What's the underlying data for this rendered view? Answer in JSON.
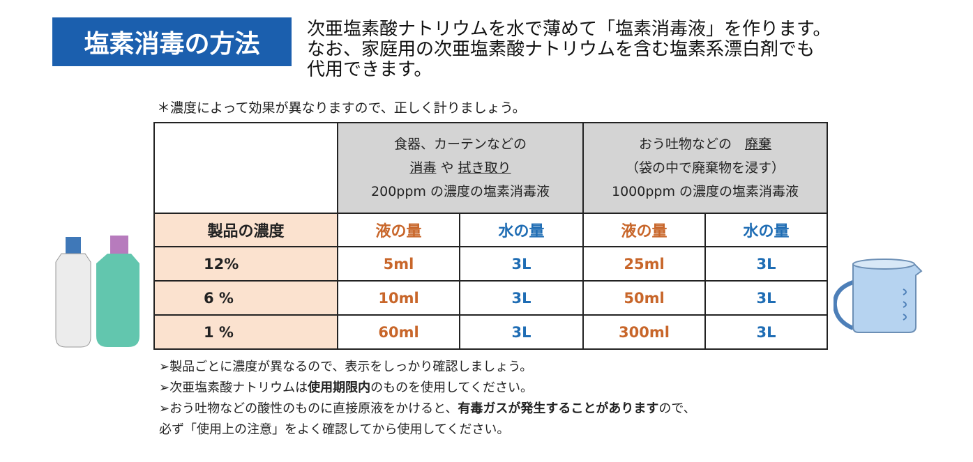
{
  "header": {
    "title": "塩素消毒の方法",
    "description": [
      "次亜塩素酸ナトリウムを水で薄めて「塩素消毒液」を作ります。",
      "なお、家庭用の次亜塩素酸ナトリウムを含む塩素系漂白剤でも",
      "代用できます。"
    ]
  },
  "note": "＊濃度によって効果が異なりますので、正しく計りましょう。",
  "table": {
    "groups": [
      {
        "lines": [
          [
            {
              "text": "食器、カーテンなどの",
              "underline": false
            }
          ],
          [
            {
              "text": "消毒",
              "underline": true
            },
            {
              "text": " や ",
              "underline": false
            },
            {
              "text": "拭き取り",
              "underline": true
            }
          ],
          [
            {
              "text": "200ppm の濃度の塩素消毒液",
              "underline": false
            }
          ]
        ]
      },
      {
        "lines": [
          [
            {
              "text": "おう吐物などの　",
              "underline": false
            },
            {
              "text": "廃棄",
              "underline": true
            }
          ],
          [
            {
              "text": "（袋の中で廃棄物を浸す）",
              "underline": false
            }
          ],
          [
            {
              "text": "1000ppm の濃度の塩素消毒液",
              "underline": false
            }
          ]
        ]
      }
    ],
    "subheaders": [
      "製品の濃度",
      "液の量",
      "水の量",
      "液の量",
      "水の量"
    ],
    "rows": [
      [
        "12%",
        "5ml",
        "3L",
        "25ml",
        "3L"
      ],
      [
        "6 %",
        "10ml",
        "3L",
        "50ml",
        "3L"
      ],
      [
        "1 %",
        "60ml",
        "3L",
        "300ml",
        "3L"
      ]
    ]
  },
  "notes": [
    [
      {
        "text": "➢製品ごとに濃度が異なるので、表示をしっかり確認しましょう。",
        "bold": false
      }
    ],
    [
      {
        "text": "➢次亜塩素酸ナトリウムは",
        "bold": false
      },
      {
        "text": "使用期限内",
        "bold": true
      },
      {
        "text": "のものを使用してください。",
        "bold": false
      }
    ],
    [
      {
        "text": "➢おう吐物などの酸性のものに直接原液をかけると、",
        "bold": false
      },
      {
        "text": "有毒ガスが発生することがあります",
        "bold": true
      },
      {
        "text": "ので、",
        "bold": false
      }
    ],
    [
      {
        "text": " 必ず「使用上の注意」をよく確認してから使用してください。",
        "bold": false
      }
    ]
  ]
}
